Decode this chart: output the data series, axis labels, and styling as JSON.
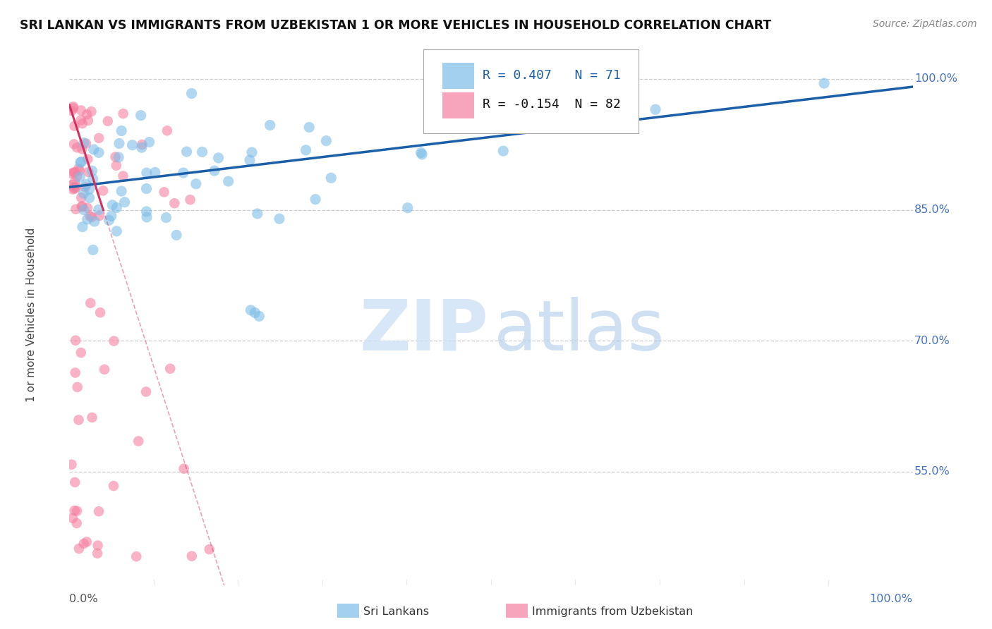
{
  "title": "SRI LANKAN VS IMMIGRANTS FROM UZBEKISTAN 1 OR MORE VEHICLES IN HOUSEHOLD CORRELATION CHART",
  "source": "Source: ZipAtlas.com",
  "ylabel": "1 or more Vehicles in Household",
  "ytick_labels": [
    "100.0%",
    "85.0%",
    "70.0%",
    "55.0%"
  ],
  "ytick_positions": [
    1.0,
    0.85,
    0.7,
    0.55
  ],
  "xlim": [
    0.0,
    1.0
  ],
  "ylim": [
    0.42,
    1.04
  ],
  "legend_text1": "R = 0.407   N = 71",
  "legend_text2": "R = -0.154  N = 82",
  "color_sri": "#7dbde8",
  "color_uzb": "#f57fa0",
  "trendline_color_sri": "#1a5fa8",
  "trendline_color_uzb": "#d63060",
  "watermark_zip": "ZIP",
  "watermark_atlas": "atlas",
  "bottom_label1": "Sri Lankans",
  "bottom_label2": "Immigrants from Uzbekistan"
}
